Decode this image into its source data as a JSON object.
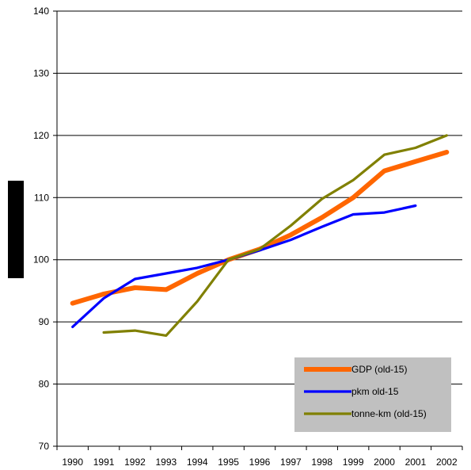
{
  "chart_data": {
    "type": "line",
    "title": "",
    "xlabel": "",
    "ylabel": "",
    "ylim": [
      70,
      140
    ],
    "yticks": [
      70,
      80,
      90,
      100,
      110,
      120,
      130,
      140
    ],
    "categories": [
      "1990",
      "1991",
      "1992",
      "1993",
      "1994",
      "1995",
      "1996",
      "1997",
      "1998",
      "1999",
      "2000",
      "2001",
      "2002"
    ],
    "grid": "horizontal",
    "legend_position": "bottom-right",
    "series": [
      {
        "name": "GDP (old-15)",
        "color": "#ff6600",
        "values": [
          93.0,
          94.5,
          95.5,
          95.2,
          97.8,
          100.0,
          101.7,
          104.0,
          106.8,
          110.0,
          114.3,
          115.8,
          117.3
        ]
      },
      {
        "name": "pkm old-15",
        "color": "#0000ff",
        "values": [
          89.2,
          93.8,
          96.9,
          97.8,
          98.7,
          100.0,
          101.5,
          103.2,
          105.3,
          107.3,
          107.6,
          108.7,
          null
        ]
      },
      {
        "name": "tonne-km (old-15)",
        "color": "#808000",
        "values": [
          null,
          88.3,
          88.6,
          87.8,
          93.3,
          100.0,
          101.7,
          105.5,
          109.8,
          112.8,
          116.9,
          118.0,
          120.0
        ]
      }
    ]
  }
}
